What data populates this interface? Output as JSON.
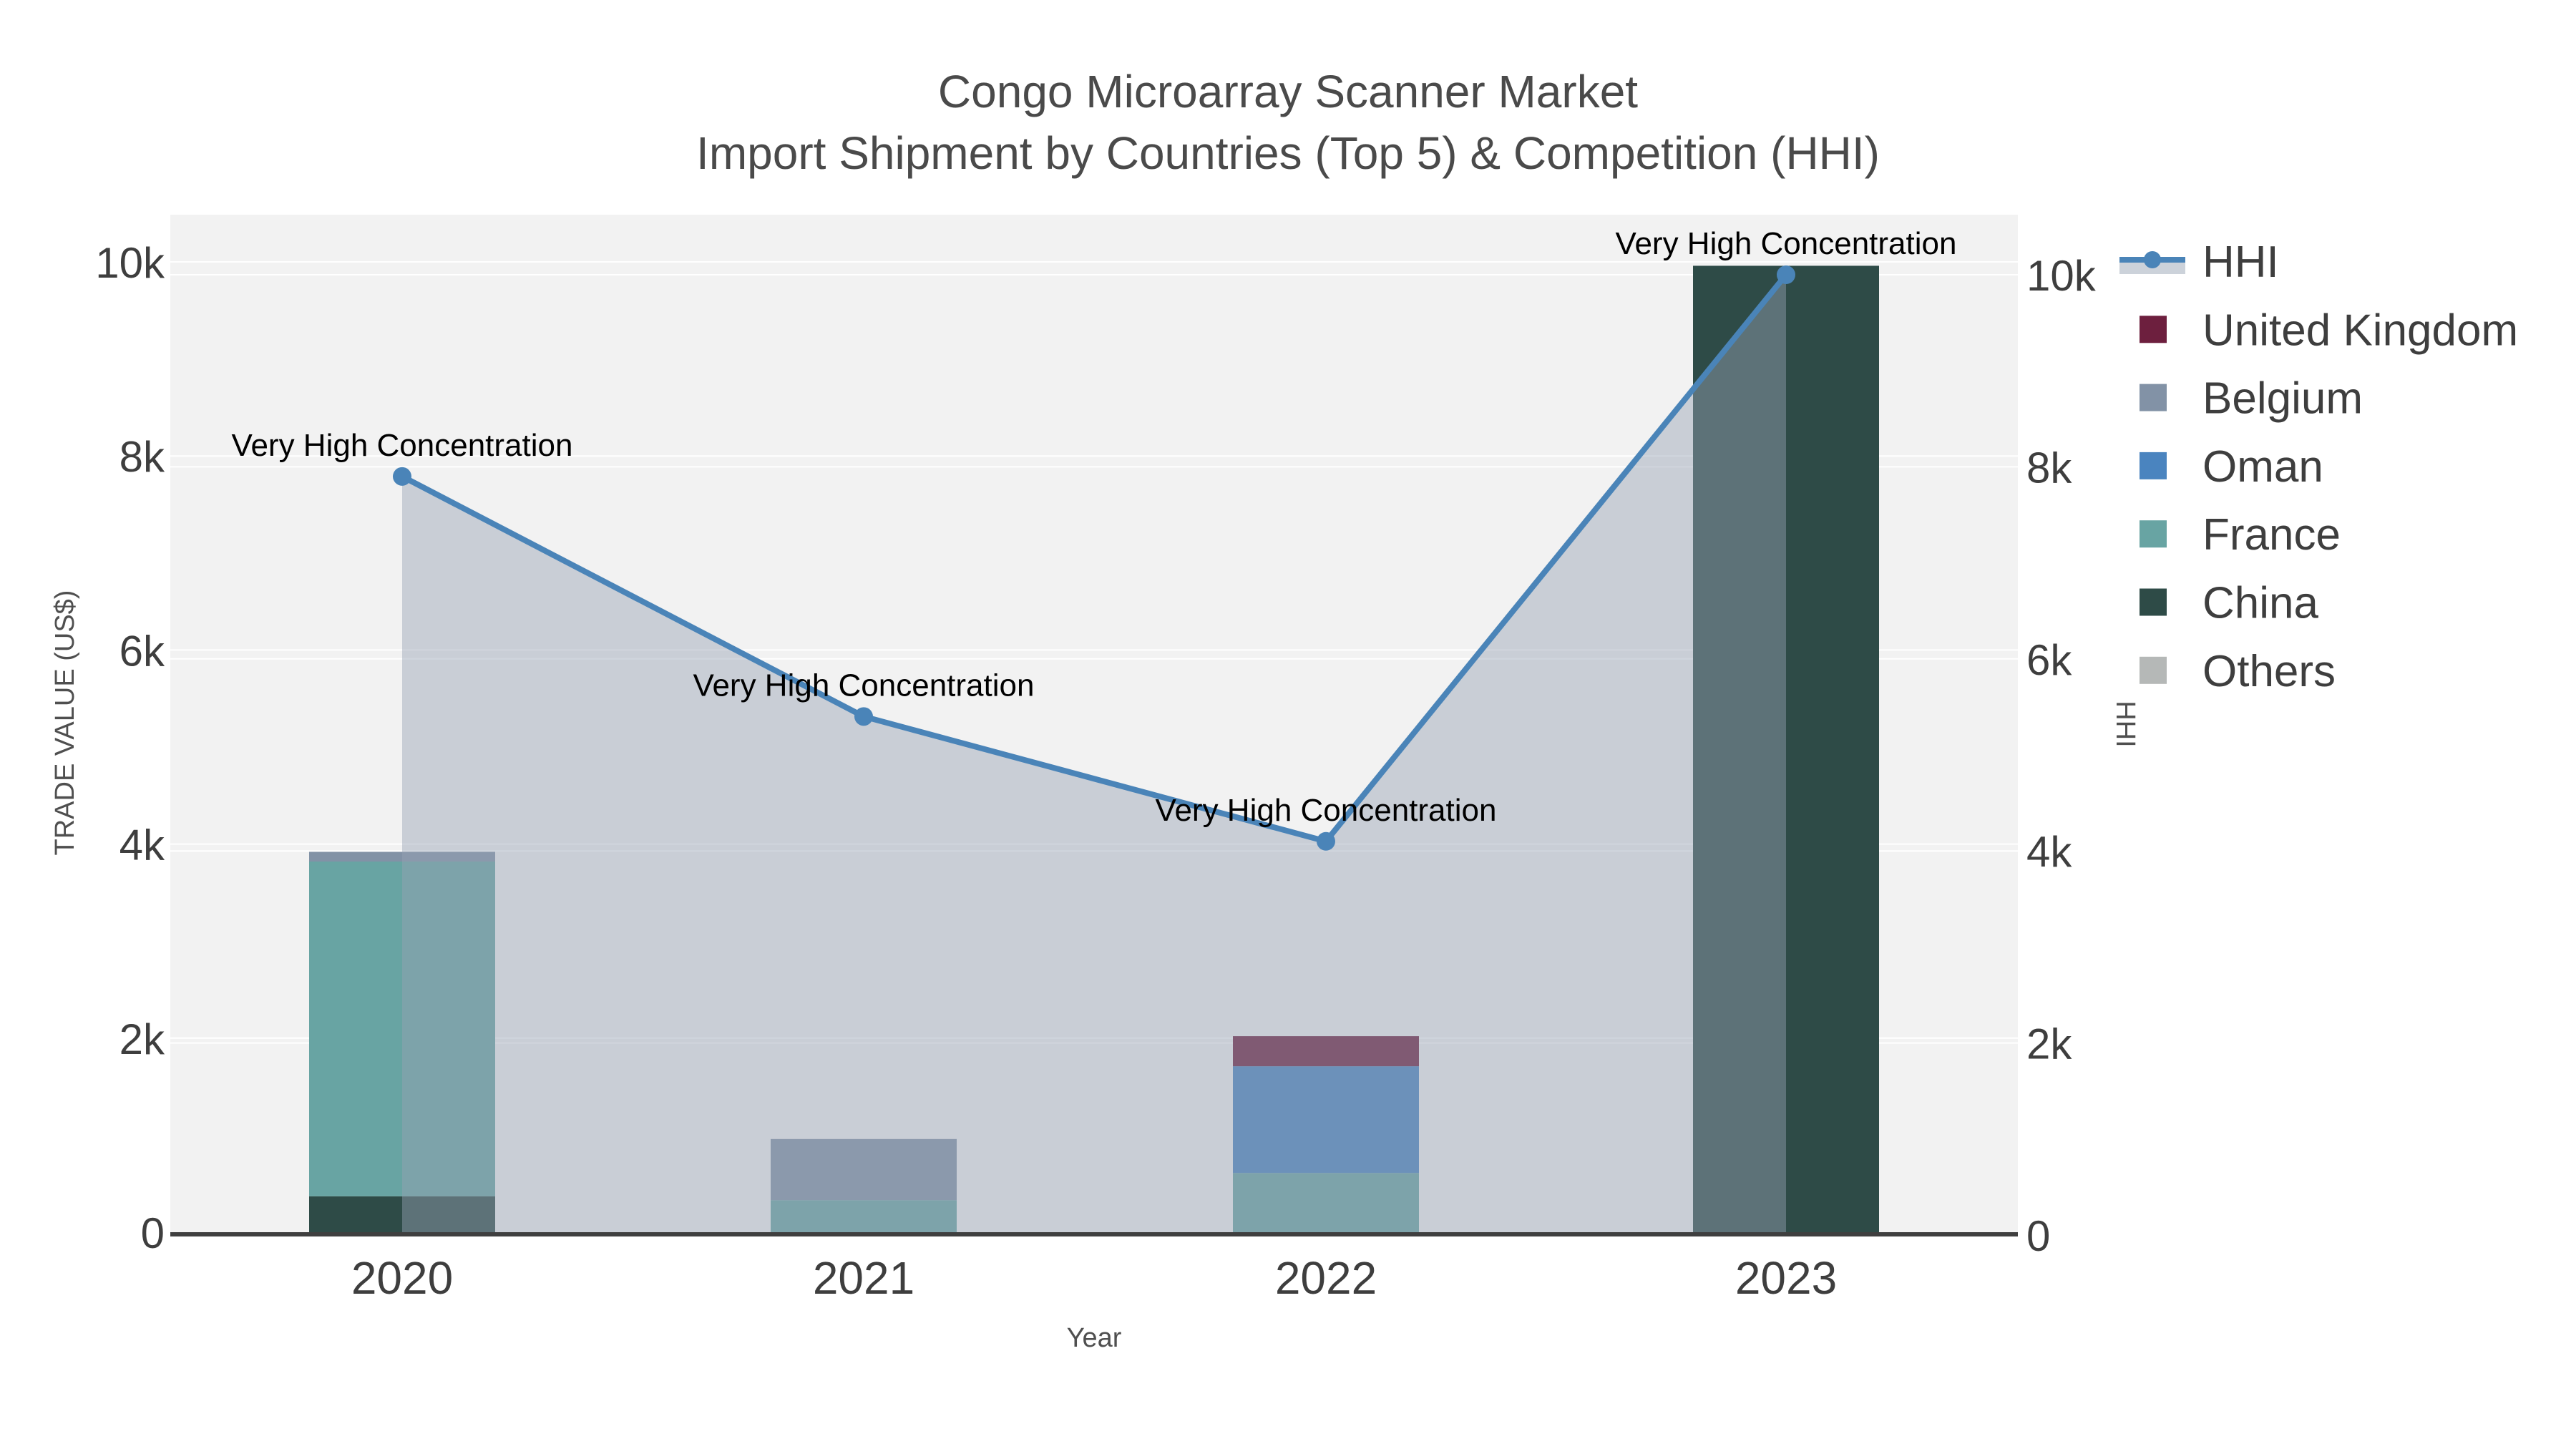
{
  "title": {
    "line1": "Congo Microarray Scanner Market",
    "line2": "Import Shipment by Countries (Top 5) & Competition (HHI)"
  },
  "chart_data": {
    "type": "bar",
    "subtype": "stacked-bars-with-hhi-line-and-area",
    "categories": [
      "2020",
      "2021",
      "2022",
      "2023"
    ],
    "xlabel": "Year",
    "ylabel_left": "TRADE VALUE (US$)",
    "ylabel_right": "HHI",
    "ylim_left": [
      0,
      10000
    ],
    "ylim_right": [
      0,
      10000
    ],
    "grid": true,
    "legend_position": "right",
    "y_ticks": [
      {
        "value": 0,
        "label": "0"
      },
      {
        "value": 2000,
        "label": "2k"
      },
      {
        "value": 4000,
        "label": "4k"
      },
      {
        "value": 6000,
        "label": "6k"
      },
      {
        "value": 8000,
        "label": "8k"
      },
      {
        "value": 10000,
        "label": "10k"
      }
    ],
    "series": [
      {
        "name": "United Kingdom",
        "color": "#6d1f3e",
        "values": [
          0,
          0,
          310,
          0
        ]
      },
      {
        "name": "Belgium",
        "color": "#8292a6",
        "values": [
          100,
          630,
          0,
          0
        ]
      },
      {
        "name": "Oman",
        "color": "#4a84bf",
        "values": [
          0,
          0,
          1100,
          0
        ]
      },
      {
        "name": "France",
        "color": "#68a4a3",
        "values": [
          3450,
          330,
          610,
          0
        ]
      },
      {
        "name": "China",
        "color": "#2e4b47",
        "values": [
          370,
          0,
          0,
          9960
        ]
      },
      {
        "name": "Others",
        "color": "#b5b8b7",
        "values": [
          0,
          0,
          0,
          0
        ]
      }
    ],
    "stack_order_bottom_to_top": [
      "China",
      "France",
      "Oman",
      "Belgium",
      "United Kingdom",
      "Others"
    ],
    "line_series": {
      "name": "HHI",
      "axis": "right",
      "color": "#4a84b8",
      "area_fill": "rgba(150,162,180,0.45)",
      "values": [
        7900,
        5400,
        4100,
        10000
      ]
    },
    "annotations": [
      {
        "text": "Very High Concentration",
        "category": "2020",
        "value": 7900
      },
      {
        "text": "Very High Concentration",
        "category": "2021",
        "value": 5400
      },
      {
        "text": "Very High Concentration",
        "category": "2022",
        "value": 4100
      },
      {
        "text": "Very High Concentration",
        "category": "2023",
        "value": 10000
      }
    ]
  },
  "colors": {
    "page_bg": "#ffffff",
    "plot_bg": "#f2f2f2",
    "gridline": "#ffffff",
    "axis_line": "#3f3f3f",
    "tick_text": "#3e3e3e",
    "title_text": "#4a4a4a",
    "annotation_text": "#000000",
    "hhi_band_legend": "#ccd2da"
  },
  "legend": {
    "items": [
      "HHI",
      "United Kingdom",
      "Belgium",
      "Oman",
      "France",
      "China",
      "Others"
    ]
  }
}
